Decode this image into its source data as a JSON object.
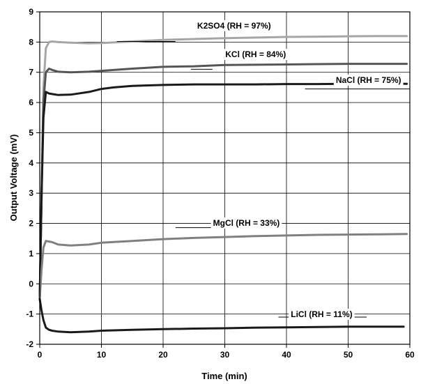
{
  "chart_data": {
    "type": "line",
    "title": "",
    "xlabel": "Time (min)",
    "ylabel": "Output Voltage (mV)",
    "xlim": [
      0,
      60
    ],
    "ylim": [
      -2,
      9
    ],
    "x_ticks": [
      "0",
      "10",
      "20",
      "30",
      "40",
      "50",
      "60"
    ],
    "y_ticks": [
      "-2",
      "-1",
      "0",
      "1",
      "2",
      "3",
      "4",
      "5",
      "6",
      "7",
      "8",
      "9"
    ],
    "grid": true,
    "legend": "none",
    "series": [
      {
        "name": "K2SO4 (RH = 97%)",
        "color": "#a6a6a6",
        "x": [
          0,
          0.3,
          0.6,
          1,
          1.5,
          2,
          3,
          5,
          8,
          10,
          15,
          20,
          25,
          30,
          35,
          40,
          45,
          50,
          55,
          59.5
        ],
        "y": [
          -0.5,
          3,
          6.5,
          7.8,
          8.0,
          8.02,
          8.0,
          7.98,
          7.96,
          7.97,
          8.02,
          8.07,
          8.1,
          8.13,
          8.15,
          8.17,
          8.18,
          8.19,
          8.2,
          8.2
        ]
      },
      {
        "name": "KCl (RH = 84%)",
        "color": "#555555",
        "x": [
          0,
          0.3,
          0.6,
          1,
          1.5,
          2,
          3,
          5,
          8,
          10,
          15,
          20,
          25,
          30,
          35,
          40,
          45,
          50,
          55,
          59.5
        ],
        "y": [
          -0.5,
          3,
          6,
          7.0,
          7.12,
          7.08,
          7.02,
          7.0,
          7.02,
          7.05,
          7.12,
          7.18,
          7.2,
          7.24,
          7.25,
          7.26,
          7.27,
          7.28,
          7.28,
          7.28
        ]
      },
      {
        "name": "NaCl (RH = 75%)",
        "color": "#1a1a1a",
        "x": [
          0,
          0.3,
          0.6,
          1,
          1.5,
          2,
          3,
          5,
          8,
          10,
          12,
          15,
          20,
          25,
          30,
          35,
          40,
          45,
          50,
          55,
          59.5
        ],
        "y": [
          -0.5,
          3,
          5.5,
          6.35,
          6.3,
          6.28,
          6.25,
          6.26,
          6.35,
          6.45,
          6.5,
          6.55,
          6.58,
          6.6,
          6.6,
          6.6,
          6.61,
          6.61,
          6.62,
          6.62,
          6.62
        ]
      },
      {
        "name": "MgCl (RH = 33%)",
        "color": "#808080",
        "x": [
          0,
          0.3,
          0.6,
          1,
          1.5,
          2,
          3,
          5,
          8,
          10,
          15,
          20,
          25,
          30,
          35,
          40,
          45,
          50,
          55,
          59.5
        ],
        "y": [
          -0.5,
          0.5,
          1.2,
          1.42,
          1.4,
          1.38,
          1.3,
          1.27,
          1.3,
          1.36,
          1.42,
          1.48,
          1.52,
          1.55,
          1.58,
          1.6,
          1.62,
          1.63,
          1.64,
          1.65
        ]
      },
      {
        "name": "LiCl (RH = 11%)",
        "color": "#1a1a1a",
        "x": [
          0,
          0.3,
          0.6,
          1,
          1.5,
          2,
          3,
          5,
          8,
          10,
          15,
          20,
          25,
          30,
          35,
          40,
          45,
          50,
          55,
          59
        ],
        "y": [
          -0.5,
          -0.9,
          -1.2,
          -1.45,
          -1.52,
          -1.55,
          -1.58,
          -1.6,
          -1.58,
          -1.55,
          -1.52,
          -1.5,
          -1.48,
          -1.47,
          -1.45,
          -1.44,
          -1.43,
          -1.42,
          -1.42,
          -1.42
        ]
      }
    ],
    "annotations": [
      {
        "text": "K2SO4 (RH = 97%)",
        "series": 0,
        "x": 31.5,
        "y": 8.45,
        "line_x0": 12.5,
        "line_x1": 22,
        "line_y": 8.02
      },
      {
        "text": "KCl (RH = 84%)",
        "series": 1,
        "x": 35,
        "y": 7.5,
        "line_x0": 24.5,
        "line_x1": 28,
        "line_y": 7.1
      },
      {
        "text": "NaCl (RH = 75%)",
        "series": 2,
        "x": 53.3,
        "y": 6.65,
        "line_x0": 43,
        "line_x1": 60,
        "line_y": 6.45
      },
      {
        "text": "MgCl (RH = 33%)",
        "series": 3,
        "x": 33.5,
        "y": 1.92,
        "line_x0": 22,
        "line_x1": 36,
        "line_y": 1.86
      },
      {
        "text": "LiCl (RH = 11%)",
        "series": 4,
        "x": 45.7,
        "y": -1.1,
        "line_x0": 38.7,
        "line_x1": 53,
        "line_y": -1.1
      }
    ]
  }
}
